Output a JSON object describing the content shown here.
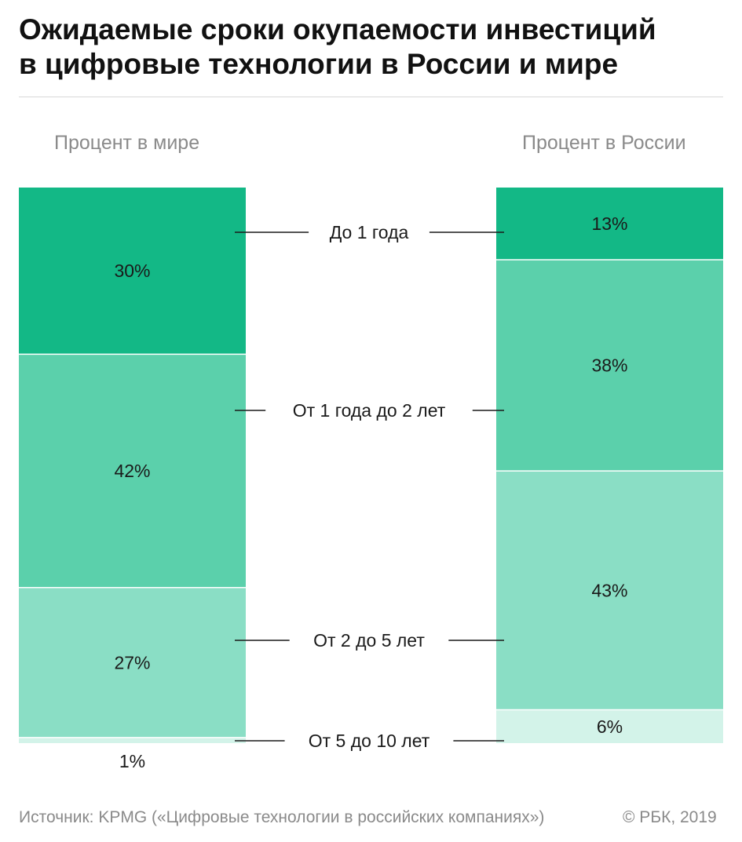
{
  "title": {
    "line1": "Ожидаемые сроки окупаемости инвестиций",
    "line2": "в цифровые технологии в России и мире"
  },
  "columns": {
    "world_label": "Процент в мире",
    "russia_label": "Процент в России"
  },
  "chart_data": {
    "type": "bar",
    "stacked": true,
    "categories": [
      "До 1 года",
      "От 1 года до 2 лет",
      "От 2 до 5 лет",
      "От 5 до 10 лет"
    ],
    "series": [
      {
        "name": "Процент в мире",
        "values": [
          30,
          42,
          27,
          1
        ],
        "labels": [
          "30%",
          "42%",
          "27%",
          "1%"
        ]
      },
      {
        "name": "Процент в России",
        "values": [
          13,
          38,
          43,
          6
        ],
        "labels": [
          "13%",
          "38%",
          "43%",
          "6%"
        ]
      }
    ],
    "colors": [
      "#13b886",
      "#5bd0ab",
      "#8adec5",
      "#d3f3e9"
    ],
    "unit": "%"
  },
  "footer": {
    "source": "Источник: KPMG («Цифровые технологии в российских компаниях»)",
    "copyright": "© РБК, 2019"
  }
}
